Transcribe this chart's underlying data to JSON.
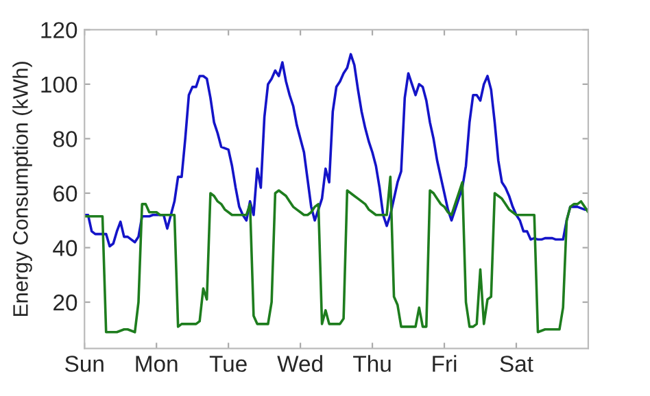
{
  "chart_data": {
    "type": "line",
    "ylabel": "Energy Consumption (kWh)",
    "ylim": [
      3,
      120
    ],
    "yticks": [
      20,
      40,
      60,
      80,
      100,
      120
    ],
    "grid": false,
    "categories": [
      "Sun",
      null,
      null,
      null,
      null,
      null,
      null,
      null,
      null,
      null,
      null,
      null,
      null,
      null,
      null,
      null,
      null,
      null,
      null,
      null,
      "Mon",
      null,
      null,
      null,
      null,
      null,
      null,
      null,
      null,
      null,
      null,
      null,
      null,
      null,
      null,
      null,
      null,
      null,
      null,
      null,
      "Tue",
      null,
      null,
      null,
      null,
      null,
      null,
      null,
      null,
      null,
      null,
      null,
      null,
      null,
      null,
      null,
      null,
      null,
      null,
      null,
      "Wed",
      null,
      null,
      null,
      null,
      null,
      null,
      null,
      null,
      null,
      null,
      null,
      null,
      null,
      null,
      null,
      null,
      null,
      null,
      null,
      "Thu",
      null,
      null,
      null,
      null,
      null,
      null,
      null,
      null,
      null,
      null,
      null,
      null,
      null,
      null,
      null,
      null,
      null,
      null,
      null,
      "Fri",
      null,
      null,
      null,
      null,
      null,
      null,
      null,
      null,
      null,
      null,
      null,
      null,
      null,
      null,
      null,
      null,
      null,
      null,
      null,
      "Sat",
      null,
      null,
      null,
      null,
      null,
      null,
      null,
      null,
      null,
      null,
      null,
      null,
      null,
      null,
      null,
      null,
      null,
      null,
      null,
      null
    ],
    "series": [
      {
        "color": "#1414c8",
        "values": [
          52,
          52,
          46,
          45,
          45,
          45,
          45,
          40.5,
          41.5,
          46,
          49.5,
          44,
          44,
          43,
          42,
          44,
          51.5,
          51.5,
          51.5,
          52,
          52,
          52,
          52,
          47,
          52,
          57,
          66,
          66,
          80,
          96,
          99,
          99,
          103,
          103,
          102,
          95,
          86,
          82,
          77,
          76.5,
          76,
          70,
          62,
          55,
          52,
          50,
          57,
          52,
          69,
          62,
          88,
          100,
          102,
          105,
          103,
          108,
          101,
          96,
          92,
          85,
          80,
          75,
          65,
          55,
          50,
          54,
          58,
          69,
          64,
          90,
          99,
          101,
          104,
          106,
          111,
          107,
          98,
          90,
          84,
          79,
          75,
          70,
          62,
          52,
          48,
          52,
          58,
          64,
          68,
          95,
          104,
          100,
          96,
          100,
          99,
          94,
          86,
          80,
          72,
          66,
          60,
          54,
          50,
          54,
          58,
          62,
          70,
          86,
          96,
          96,
          94,
          100,
          103,
          98,
          86,
          72,
          64,
          62,
          59,
          55,
          52,
          50,
          46,
          46,
          43,
          43.5,
          43,
          43,
          43.5,
          43.5,
          43.5,
          43,
          43,
          43,
          50,
          55,
          55,
          55,
          54.5,
          54,
          54
        ]
      },
      {
        "color": "#1e7d1e",
        "values": [
          51.5,
          51.5,
          51.5,
          51.5,
          51.5,
          51.5,
          9,
          9,
          9,
          9,
          9.5,
          10,
          10,
          9.5,
          9,
          20,
          56,
          56,
          53,
          53,
          53,
          52,
          52,
          52,
          52,
          52,
          11,
          12,
          12,
          12,
          12,
          12,
          13,
          25,
          21,
          60,
          59,
          57,
          56,
          54,
          53,
          52,
          52,
          52,
          52,
          52,
          56,
          15,
          12,
          12,
          12,
          12,
          20,
          60,
          61,
          60,
          59,
          57,
          55,
          54,
          53,
          52,
          52,
          53,
          55,
          56,
          12,
          17,
          12,
          12,
          12,
          12,
          14,
          61,
          60,
          59,
          58,
          57,
          56,
          54,
          53,
          52,
          52,
          52,
          52,
          66,
          22,
          19,
          11,
          11,
          11,
          11,
          11,
          18,
          11,
          11,
          61,
          60,
          58,
          56,
          55,
          53,
          52,
          56,
          60,
          64,
          20,
          11,
          11,
          12,
          32,
          12,
          21,
          22,
          60,
          59,
          58,
          56,
          54,
          53,
          52,
          52,
          52,
          52,
          52,
          52,
          9,
          9.5,
          10,
          10,
          10,
          10,
          10,
          18,
          50,
          55,
          56,
          56,
          57,
          55,
          53
        ]
      }
    ]
  }
}
